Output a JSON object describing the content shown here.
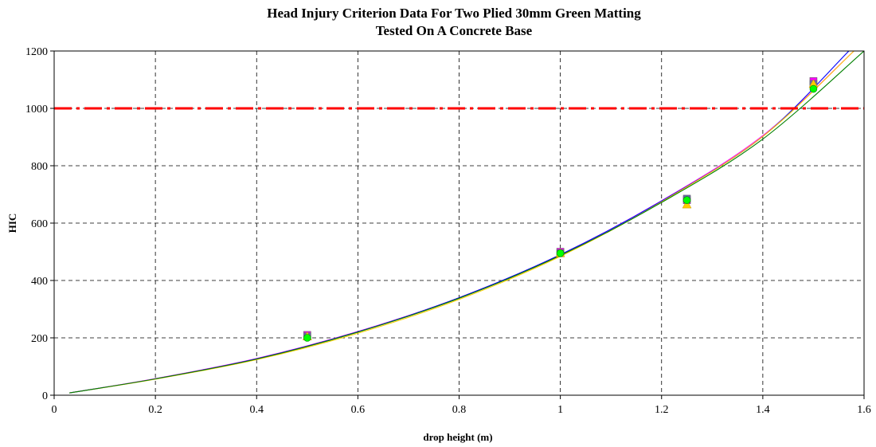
{
  "chart_data": {
    "type": "scatter",
    "title_lines": [
      "Head Injury Criterion Data For Two Plied 30mm Green Matting",
      "Tested On A Concrete Base"
    ],
    "xlabel": "drop height (m)",
    "ylabel": "HIC",
    "xlim": [
      0,
      1.6
    ],
    "ylim": [
      0,
      1200
    ],
    "x_ticks": [
      0,
      0.2,
      0.4,
      0.6,
      0.8,
      1,
      1.2,
      1.4,
      1.6
    ],
    "x_tick_labels": [
      "0",
      "0.2",
      "0.4",
      "0.6",
      "0.8",
      "1",
      "1.2",
      "1.4",
      "1.6"
    ],
    "y_ticks": [
      0,
      200,
      400,
      600,
      800,
      1000,
      1200
    ],
    "y_tick_labels": [
      "0",
      "200",
      "400",
      "600",
      "800",
      "1000",
      "1200"
    ],
    "grid": true,
    "threshold": {
      "y": 1000,
      "color": "#ff0000",
      "style": "dash-dot"
    },
    "series": [
      {
        "marker": "square",
        "color": "#ff00ff",
        "trend_color": "#ff00ff",
        "x": [
          0.5,
          1.0,
          1.25,
          1.5
        ],
        "y": [
          210,
          500,
          680,
          1095
        ]
      },
      {
        "marker": "square",
        "color": "#6666aa",
        "trend_color": "#0000ff",
        "x": [
          0.5,
          1.0,
          1.25,
          1.5
        ],
        "y": [
          205,
          495,
          685,
          1085
        ]
      },
      {
        "marker": "triangle",
        "color": "#ffcc00",
        "trend_color": "#ffcc00",
        "x": [
          0.5,
          1.0,
          1.25,
          1.5
        ],
        "y": [
          205,
          495,
          665,
          1085
        ]
      },
      {
        "marker": "circle",
        "color": "#00ff00",
        "trend_color": "#008000",
        "x": [
          0.5,
          1.0,
          1.25,
          1.5
        ],
        "y": [
          200,
          495,
          680,
          1068
        ]
      }
    ],
    "trendlines": [
      {
        "color": "#ff00ff",
        "x": [
          0.03,
          0.2,
          0.4,
          0.6,
          0.8,
          1.0,
          1.2,
          1.4,
          1.58
        ],
        "y": [
          8,
          58,
          128,
          222,
          340,
          490,
          678,
          905,
          1200
        ]
      },
      {
        "color": "#0000ff",
        "x": [
          0.03,
          0.2,
          0.4,
          0.6,
          0.8,
          1.0,
          1.2,
          1.4,
          1.57
        ],
        "y": [
          8,
          57,
          127,
          221,
          340,
          490,
          677,
          902,
          1200
        ]
      },
      {
        "color": "#ffcc00",
        "x": [
          0.03,
          0.2,
          0.4,
          0.6,
          0.8,
          1.0,
          1.2,
          1.4,
          1.58
        ],
        "y": [
          8,
          56,
          124,
          216,
          334,
          484,
          674,
          902,
          1200
        ]
      },
      {
        "color": "#008000",
        "x": [
          0.03,
          0.2,
          0.4,
          0.6,
          0.8,
          1.0,
          1.2,
          1.4,
          1.6
        ],
        "y": [
          8,
          57,
          126,
          220,
          338,
          487,
          672,
          893,
          1200
        ]
      }
    ]
  }
}
